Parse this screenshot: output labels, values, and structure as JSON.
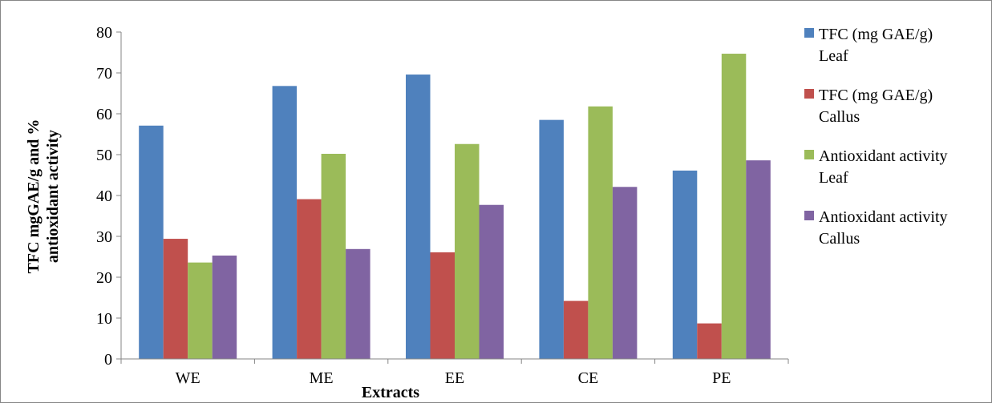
{
  "chart_data": {
    "type": "bar",
    "categories": [
      "WE",
      "ME",
      "EE",
      "CE",
      "PE"
    ],
    "series": [
      {
        "name": "TFC (mg GAE/g) Leaf",
        "legend_lines": [
          "TFC (mg GAE/g)",
          "Leaf"
        ],
        "color": "#4F81BD",
        "values": [
          57.1,
          66.8,
          69.6,
          58.5,
          46.1
        ]
      },
      {
        "name": "TFC (mg GAE/g) Callus",
        "legend_lines": [
          "TFC (mg GAE/g)",
          "Callus"
        ],
        "color": "#C0504D",
        "values": [
          29.4,
          39.1,
          26.1,
          14.2,
          8.7
        ]
      },
      {
        "name": "Antioxidant activity Leaf",
        "legend_lines": [
          "Antioxidant activity",
          "Leaf"
        ],
        "color": "#9BBB59",
        "values": [
          23.6,
          50.2,
          52.6,
          61.8,
          74.7
        ]
      },
      {
        "name": "Antioxidant activity Callus",
        "legend_lines": [
          "Antioxidant activity",
          "Callus"
        ],
        "color": "#8064A2",
        "values": [
          25.3,
          26.9,
          37.7,
          42.1,
          48.6
        ]
      }
    ],
    "xlabel": "Extracts",
    "ylabel_lines": [
      "TFC mgGAE/g and %",
      "antioxidant activity"
    ],
    "ylim": [
      0,
      80
    ],
    "yticks": [
      0,
      10,
      20,
      30,
      40,
      50,
      60,
      70,
      80
    ],
    "grid": false,
    "legend_position": "right"
  }
}
